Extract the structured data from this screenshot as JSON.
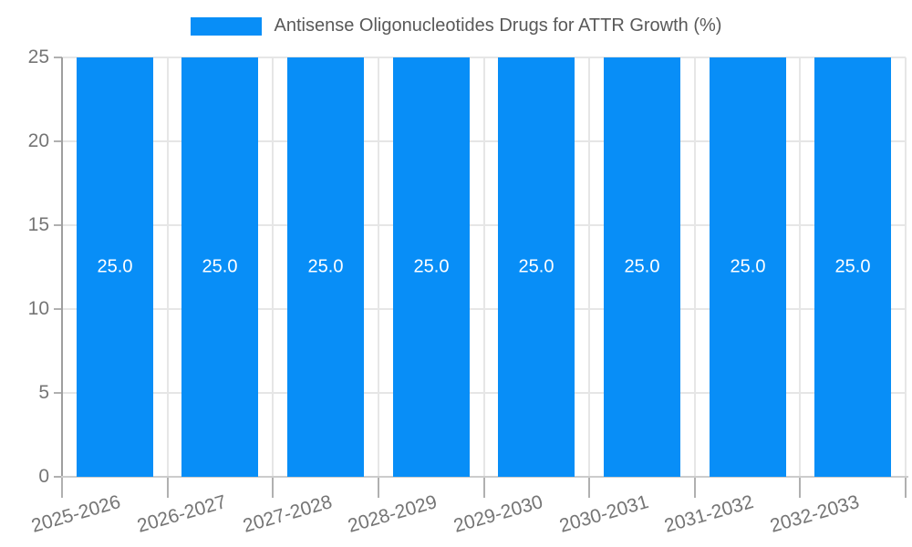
{
  "chart_data": {
    "type": "bar",
    "title": "Antisense Oligonucleotides Drugs for ATTR Growth (%)",
    "legend": {
      "position": "top",
      "label": "Antisense Oligonucleotides Drugs for ATTR Growth (%)"
    },
    "categories": [
      "2025-2026",
      "2026-2027",
      "2027-2028",
      "2028-2029",
      "2029-2030",
      "2030-2031",
      "2031-2032",
      "2032-2033"
    ],
    "series": [
      {
        "name": "Antisense Oligonucleotides Drugs for ATTR Growth (%)",
        "values": [
          25.0,
          25.0,
          25.0,
          25.0,
          25.0,
          25.0,
          25.0,
          25.0
        ],
        "data_labels": [
          "25.0",
          "25.0",
          "25.0",
          "25.0",
          "25.0",
          "25.0",
          "25.0",
          "25.0"
        ]
      }
    ],
    "xlabel": "",
    "ylabel": "",
    "ylim": [
      0,
      25
    ],
    "yticks": [
      0,
      5,
      10,
      15,
      20,
      25
    ],
    "grid": true,
    "x_label_rotation_deg": -16,
    "colors": {
      "bar": "#088ef7",
      "grid_line": "#e6e6e6",
      "axis_line_y": "#9e9e9e",
      "axis_line_x": "#cccccc",
      "tick": "#b0b0b0",
      "axis_label_text": "#757575",
      "legend_text": "#595959",
      "data_label_text": "#ffffff",
      "background": "#ffffff"
    }
  }
}
